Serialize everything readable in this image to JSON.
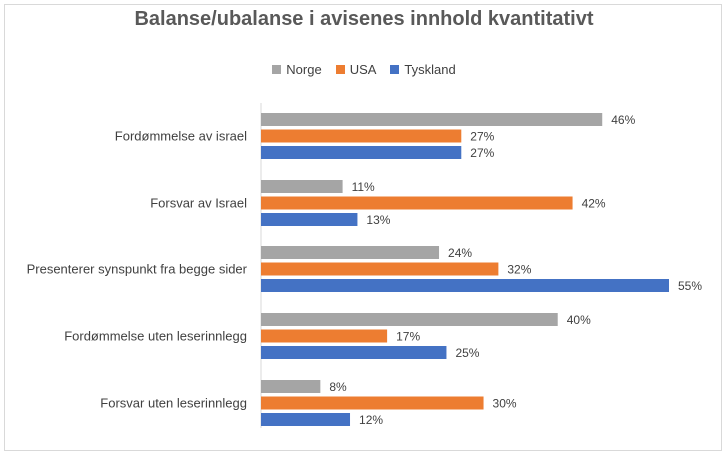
{
  "chart_data": {
    "type": "bar",
    "orientation": "horizontal",
    "title": "Balanse/ubalanse i avisenes innhold kvantitativt",
    "categories": [
      "Fordømmelse av israel",
      "Forsvar av Israel",
      "Presenterer synspunkt fra begge sider",
      "Fordømmelse uten leserinnlegg",
      "Forsvar uten leserinnlegg"
    ],
    "series": [
      {
        "name": "Norge",
        "color": "#a5a5a5",
        "values": [
          46,
          11,
          24,
          40,
          8
        ]
      },
      {
        "name": "USA",
        "color": "#ed7d31",
        "values": [
          27,
          42,
          32,
          17,
          30
        ]
      },
      {
        "name": "Tyskland",
        "color": "#4472c4",
        "values": [
          27,
          13,
          55,
          25,
          12
        ]
      }
    ],
    "value_suffix": "%",
    "xlim": [
      0,
      55
    ],
    "grid": false,
    "legend_position": "top"
  }
}
